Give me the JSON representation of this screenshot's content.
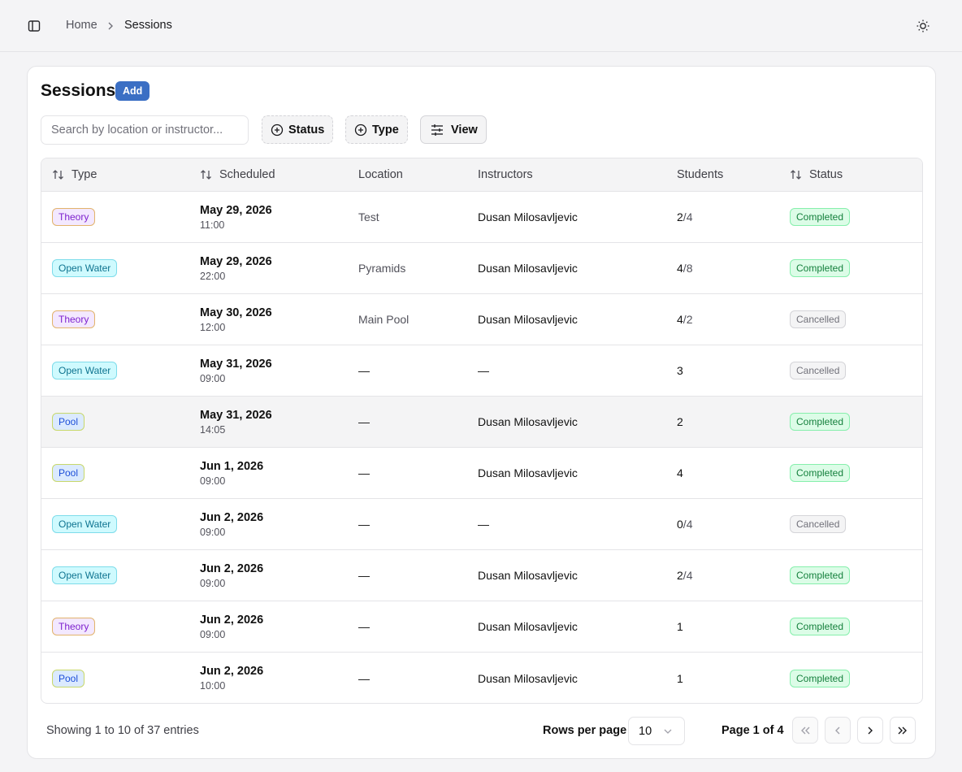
{
  "header": {
    "breadcrumb": [
      "Home",
      "Sessions"
    ]
  },
  "page": {
    "title": "Sessions",
    "add_button": "Add"
  },
  "toolbar": {
    "search_placeholder": "Search by location or instructor...",
    "filters": [
      "Status",
      "Type"
    ],
    "view_button": "View"
  },
  "table": {
    "columns": [
      "Type",
      "Scheduled",
      "Location",
      "Instructors",
      "Students",
      "Status"
    ],
    "rows": [
      {
        "type": "Theory",
        "type_tone": "purple",
        "date": "May 29, 2026",
        "time": "11:00",
        "location": "Test",
        "instructors": "Dusan Milosavljevic",
        "students": "2",
        "capacity": "4",
        "status": "Completed",
        "status_tone": "green"
      },
      {
        "type": "Open Water",
        "type_tone": "cyan",
        "date": "May 29, 2026",
        "time": "22:00",
        "location": "Pyramids",
        "instructors": "Dusan Milosavljevic",
        "students": "4",
        "capacity": "8",
        "status": "Completed",
        "status_tone": "green"
      },
      {
        "type": "Theory",
        "type_tone": "purple",
        "date": "May 30, 2026",
        "time": "12:00",
        "location": "Main Pool",
        "instructors": "Dusan Milosavljevic",
        "students": "4",
        "capacity": "2",
        "status": "Cancelled",
        "status_tone": "gray"
      },
      {
        "type": "Open Water",
        "type_tone": "cyan",
        "date": "May 31, 2026",
        "time": "09:00",
        "location": "—",
        "instructors": "—",
        "students": "3",
        "status": "Cancelled",
        "status_tone": "gray"
      },
      {
        "type": "Pool",
        "type_tone": "blue",
        "date": "May 31, 2026",
        "time": "14:05",
        "location": "—",
        "instructors": "Dusan Milosavljevic",
        "students": "2",
        "status": "Completed",
        "status_tone": "green"
      },
      {
        "type": "Pool",
        "type_tone": "blue",
        "date": "Jun 1, 2026",
        "time": "09:00",
        "location": "—",
        "instructors": "Dusan Milosavljevic",
        "students": "4",
        "status": "Completed",
        "status_tone": "green"
      },
      {
        "type": "Open Water",
        "type_tone": "cyan",
        "date": "Jun 2, 2026",
        "time": "09:00",
        "location": "—",
        "instructors": "—",
        "students": "0",
        "capacity": "4",
        "status": "Cancelled",
        "status_tone": "gray"
      },
      {
        "type": "Open Water",
        "type_tone": "cyan",
        "date": "Jun 2, 2026",
        "time": "09:00",
        "location": "—",
        "instructors": "Dusan Milosavljevic",
        "students": "2",
        "capacity": "4",
        "status": "Completed",
        "status_tone": "green"
      },
      {
        "type": "Theory",
        "type_tone": "purple",
        "date": "Jun 2, 2026",
        "time": "09:00",
        "location": "—",
        "instructors": "Dusan Milosavljevic",
        "students": "1",
        "status": "Completed",
        "status_tone": "green"
      },
      {
        "type": "Pool",
        "type_tone": "blue",
        "date": "Jun 2, 2026",
        "time": "10:00",
        "location": "—",
        "instructors": "Dusan Milosavljevic",
        "students": "1",
        "status": "Completed",
        "status_tone": "green"
      }
    ]
  },
  "footer": {
    "summary": "Showing 1 to 10 of 37 entries",
    "rows_per_page_label": "Rows per page",
    "rows_per_page": "10",
    "page_info": "Page 1 of 4"
  }
}
